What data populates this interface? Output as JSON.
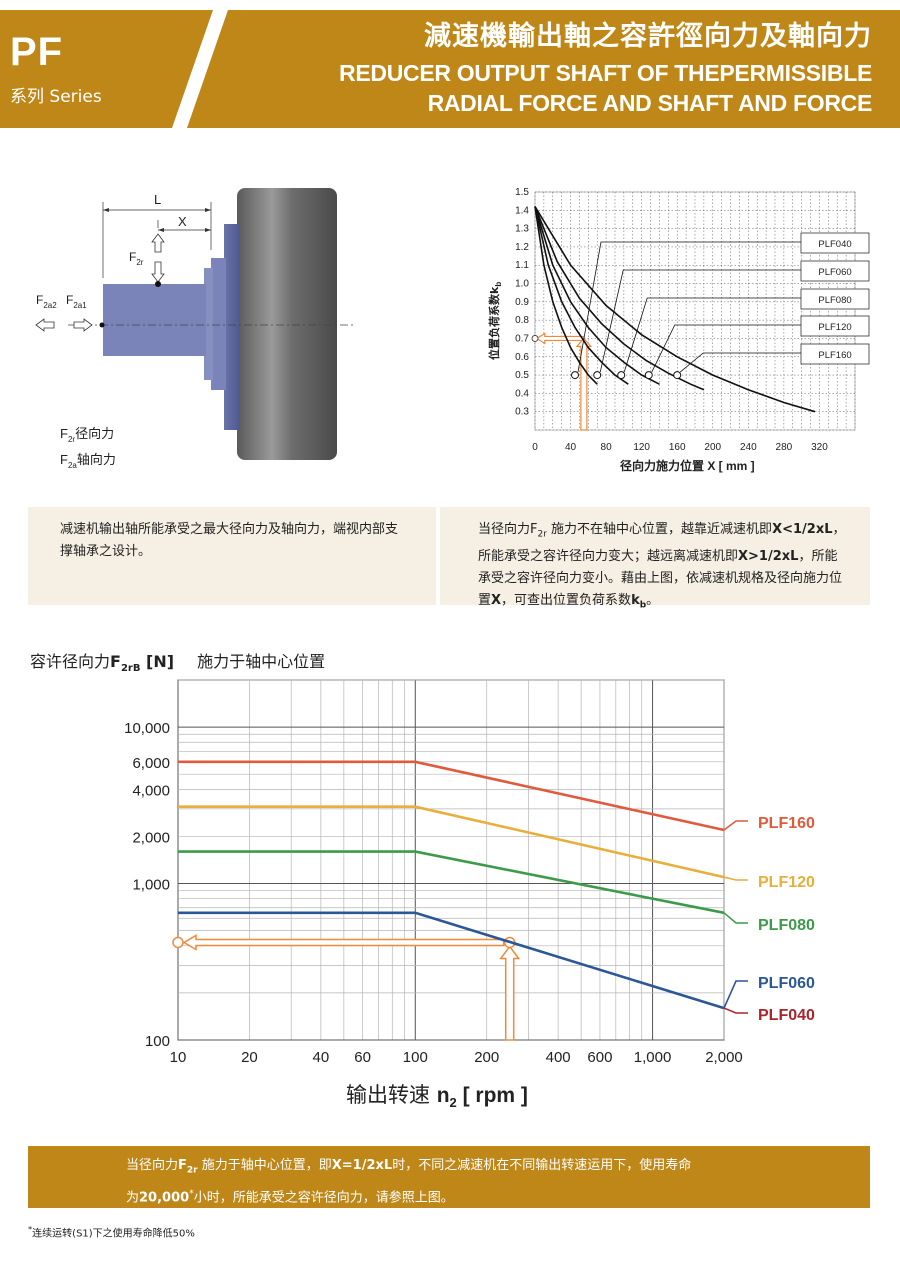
{
  "header": {
    "series_code": "PF",
    "series_label": "系列 Series",
    "title_cn": "減速機輸出軸之容許徑向力及軸向力",
    "title_en_line1": "REDUCER OUTPUT SHAFT OF THEPERMISSIBLE",
    "title_en_line2": "RADIAL FORCE AND SHAFT AND FORCE"
  },
  "diagram": {
    "label_L": "L",
    "label_X": "X",
    "label_F2r": "F",
    "label_F2r_sub": "2r",
    "label_F2a2": "F",
    "label_F2a2_sub": "2a2",
    "label_F2a1": "F",
    "label_F2a1_sub": "2a1",
    "legend_radial_sym": "F",
    "legend_radial_sub": "2r",
    "legend_radial_text": "径向力",
    "legend_axial_sym": "F",
    "legend_axial_sub": "2a",
    "legend_axial_text": "轴向力"
  },
  "kb_chart": {
    "ylabel": "位置负荷系数k",
    "ylabel_sub": "b",
    "xlabel": "径向力施力位置 X [ mm ]"
  },
  "info_left": {
    "text": "减速机输出轴所能承受之最大径向力及轴向力，端视内部支撑轴承之设计。"
  },
  "info_right": {
    "p1": "当径向力F",
    "p1_sub": "2r",
    "p2": " 施力不在轴中心位置，越靠近减速机即",
    "p3": "X<1/2xL",
    "p4": "，所能承受之容许径向力变大；越远离减速机即",
    "p5": "X>1/2xL",
    "p6": "，所能承受之容许径向力变小。藉由上图，依减速机规格及径向施力位置",
    "p7": "X",
    "p8": "，可查出位置负荷系数",
    "p9": "k",
    "p9_sub": "b",
    "p10": "。"
  },
  "f2rb_chart_title": {
    "t1": "容许径向力",
    "t2": "F",
    "t2_sub": "2rB",
    "t3": " [N]",
    "t4": "施力于轴中心位置"
  },
  "footer": {
    "l1a": "当径向力",
    "l1b": "F",
    "l1b_sub": "2r",
    "l1c": " 施力于轴中心位置，即",
    "l1d": "X=1/2xL",
    "l1e": "时，不同之减速机在不同输出转速运用下，使用寿命",
    "l2a": "为",
    "l2b": "20,000",
    "l2c": "*",
    "l2d": "小时，所能承受之容许径向力，请参照上图。"
  },
  "footnote": {
    "star": "*",
    "text": "连续运转(S1)下之使用寿命降低50%"
  },
  "colors": {
    "brand": "#bf8718",
    "box_bg": "#f6efe3",
    "plf160": "#e05a3c",
    "plf120": "#e9ae3b",
    "plf080": "#3d9a4b",
    "plf060": "#2a5796",
    "plf040": "#a8262b",
    "marker": "#f08a3a",
    "shaft": "#7a84b8"
  },
  "chart_data": [
    {
      "type": "line",
      "title": "",
      "xlabel": "径向力施力位置 X [ mm ]",
      "ylabel": "位置负荷系数kb",
      "xlim": [
        0,
        360
      ],
      "ylim": [
        0.2,
        1.5
      ],
      "x_ticks": [
        "0",
        "40",
        "80",
        "120",
        "160",
        "200",
        "240",
        "280",
        "320"
      ],
      "y_ticks": [
        "0.3",
        "0.4",
        "0.5",
        "0.6",
        "0.7",
        "0.8",
        "0.9",
        "1.0",
        "1.1",
        "1.2",
        "1.3",
        "1.4",
        "1.5"
      ],
      "grid": true,
      "legend": "right",
      "series": [
        {
          "name": "PLF040",
          "x": [
            0,
            10,
            20,
            30,
            40,
            50,
            60,
            70
          ],
          "y": [
            1.42,
            1.1,
            0.9,
            0.76,
            0.65,
            0.57,
            0.5,
            0.45
          ],
          "marker_x": 45,
          "marker_y": 0.5
        },
        {
          "name": "PLF060",
          "x": [
            0,
            15,
            30,
            45,
            60,
            75,
            90,
            105
          ],
          "y": [
            1.42,
            1.1,
            0.9,
            0.76,
            0.65,
            0.57,
            0.5,
            0.45
          ],
          "marker_x": 70,
          "marker_y": 0.5
        },
        {
          "name": "PLF080",
          "x": [
            0,
            20,
            40,
            60,
            80,
            100,
            120,
            140
          ],
          "y": [
            1.42,
            1.1,
            0.9,
            0.76,
            0.65,
            0.57,
            0.5,
            0.45
          ],
          "marker_x": 97,
          "marker_y": 0.5
        },
        {
          "name": "PLF120",
          "x": [
            0,
            25,
            50,
            75,
            100,
            125,
            150,
            175,
            190
          ],
          "y": [
            1.42,
            1.12,
            0.92,
            0.78,
            0.67,
            0.58,
            0.51,
            0.45,
            0.42
          ],
          "marker_x": 128,
          "marker_y": 0.5
        },
        {
          "name": "PLF160",
          "x": [
            0,
            40,
            80,
            120,
            160,
            200,
            240,
            280,
            315
          ],
          "y": [
            1.42,
            1.1,
            0.88,
            0.72,
            0.6,
            0.5,
            0.42,
            0.35,
            0.3
          ],
          "marker_x": 160,
          "marker_y": 0.5
        }
      ],
      "example_reading": {
        "x": 55,
        "y": 0.7
      }
    },
    {
      "type": "line",
      "title": "容许径向力F2rB [N]",
      "subtitle": "施力于轴中心位置",
      "xlabel": "输出转速 n2 [ rpm ]",
      "ylabel": "",
      "x_scale": "log",
      "y_scale": "log",
      "xlim": [
        10,
        2000
      ],
      "ylim": [
        100,
        20000
      ],
      "x_ticks": [
        "10",
        "20",
        "40",
        "60",
        "100",
        "200",
        "400",
        "600",
        "1,000",
        "2,000"
      ],
      "y_ticks": [
        "100",
        "1,000",
        "2,000",
        "4,000",
        "6,000",
        "10,000"
      ],
      "grid": true,
      "legend": "right",
      "series": [
        {
          "name": "PLF160",
          "x": [
            10,
            100,
            2000
          ],
          "y": [
            6000,
            6000,
            2200
          ]
        },
        {
          "name": "PLF120",
          "x": [
            10,
            100,
            2000
          ],
          "y": [
            3100,
            3100,
            1100
          ]
        },
        {
          "name": "PLF080",
          "x": [
            10,
            100,
            2000
          ],
          "y": [
            1600,
            1600,
            650
          ]
        },
        {
          "name": "PLF060",
          "x": [
            10,
            100,
            2000
          ],
          "y": [
            650,
            650,
            160
          ]
        },
        {
          "name": "PLF040",
          "x": [
            10,
            100,
            2000
          ],
          "y": [
            650,
            650,
            160
          ]
        }
      ],
      "example_reading": {
        "x": 250,
        "y": 420
      }
    }
  ]
}
